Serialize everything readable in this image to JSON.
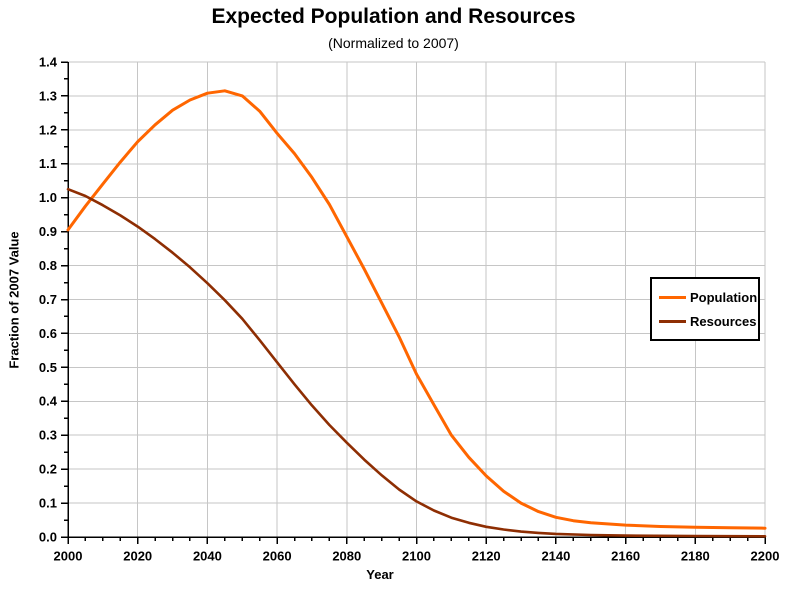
{
  "title": "Expected Population and Resources",
  "subtitle": "(Normalized to 2007)",
  "colors": {
    "population": "#FF6600",
    "resources": "#8E2E03",
    "gridline": "#C6C6C6",
    "axis": "#000000",
    "background": "#FFFFFF"
  },
  "legend": {
    "entries": [
      "Population",
      "Resources"
    ]
  },
  "chart_data": {
    "type": "line",
    "title": "Expected Population and Resources",
    "subtitle": "(Normalized to 2007)",
    "xlabel": "Year",
    "ylabel": "Fraction of 2007 Value",
    "xlim": [
      2000,
      2200
    ],
    "ylim": [
      0,
      1.4
    ],
    "x_tick_labels": [
      "2000",
      "2020",
      "2040",
      "2060",
      "2080",
      "2100",
      "2120",
      "2140",
      "2160",
      "2180",
      "2200"
    ],
    "x_major_ticks": [
      2000,
      2020,
      2040,
      2060,
      2080,
      2100,
      2120,
      2140,
      2160,
      2180,
      2200
    ],
    "x_minor_step": 5,
    "y_tick_labels": [
      "0.0",
      "0.1",
      "0.2",
      "0.3",
      "0.4",
      "0.5",
      "0.6",
      "0.7",
      "0.8",
      "0.9",
      "1.0",
      "1.1",
      "1.2",
      "1.3",
      "1.4"
    ],
    "y_major_ticks": [
      0,
      0.1,
      0.2,
      0.3,
      0.4,
      0.5,
      0.6,
      0.7,
      0.8,
      0.9,
      1.0,
      1.1,
      1.2,
      1.3,
      1.4
    ],
    "y_minor_step": 0.05,
    "grid": "major-both-gray",
    "legend_position": "right-middle",
    "series": [
      {
        "name": "Population",
        "color": "#FF6600",
        "x": [
          2000,
          2005,
          2010,
          2015,
          2020,
          2025,
          2030,
          2035,
          2040,
          2045,
          2050,
          2055,
          2060,
          2065,
          2070,
          2075,
          2080,
          2085,
          2090,
          2095,
          2100,
          2105,
          2110,
          2115,
          2120,
          2125,
          2130,
          2135,
          2140,
          2145,
          2150,
          2160,
          2170,
          2180,
          2190,
          2200
        ],
        "values": [
          0.905,
          0.975,
          1.04,
          1.105,
          1.165,
          1.215,
          1.258,
          1.288,
          1.308,
          1.315,
          1.3,
          1.255,
          1.19,
          1.13,
          1.06,
          0.98,
          0.885,
          0.79,
          0.69,
          0.59,
          0.48,
          0.39,
          0.3,
          0.235,
          0.18,
          0.135,
          0.1,
          0.075,
          0.058,
          0.048,
          0.042,
          0.035,
          0.031,
          0.029,
          0.027,
          0.026
        ]
      },
      {
        "name": "Resources",
        "color": "#8E2E03",
        "x": [
          2000,
          2005,
          2010,
          2015,
          2020,
          2025,
          2030,
          2035,
          2040,
          2045,
          2050,
          2055,
          2060,
          2065,
          2070,
          2075,
          2080,
          2085,
          2090,
          2095,
          2100,
          2105,
          2110,
          2115,
          2120,
          2125,
          2130,
          2135,
          2140,
          2150,
          2160,
          2180,
          2200
        ],
        "values": [
          1.025,
          1.005,
          0.978,
          0.948,
          0.915,
          0.878,
          0.838,
          0.795,
          0.748,
          0.698,
          0.643,
          0.58,
          0.515,
          0.45,
          0.388,
          0.33,
          0.278,
          0.228,
          0.182,
          0.14,
          0.105,
          0.078,
          0.057,
          0.042,
          0.03,
          0.022,
          0.016,
          0.012,
          0.009,
          0.006,
          0.004,
          0.003,
          0.002
        ]
      }
    ]
  }
}
